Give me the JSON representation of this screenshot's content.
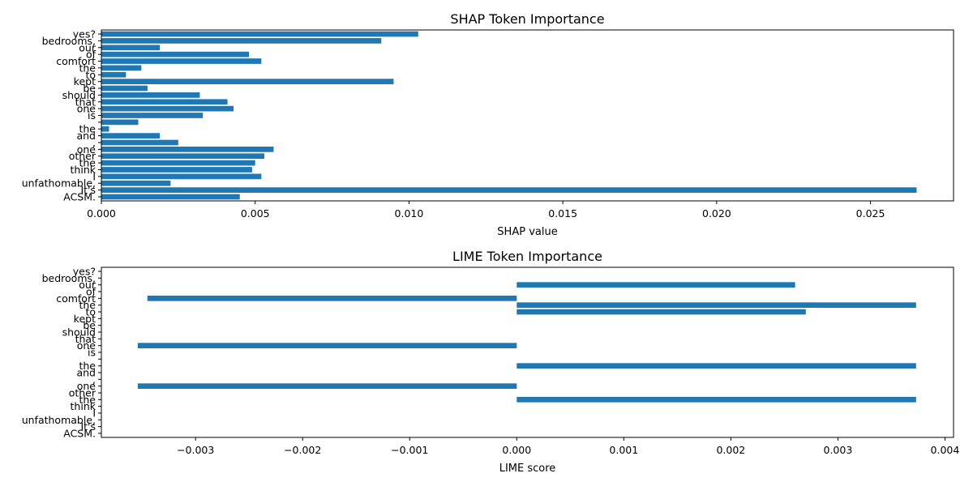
{
  "chart_data": [
    {
      "type": "bar",
      "orientation": "horizontal",
      "title": "SHAP Token Importance",
      "xlabel": "SHAP value",
      "ylabel": "",
      "xlim": [
        0,
        0.0277
      ],
      "xticks": [
        0.0,
        0.005,
        0.01,
        0.015,
        0.02,
        0.025
      ],
      "xtick_labels": [
        "0.000",
        "0.005",
        "0.010",
        "0.015",
        "0.020",
        "0.025"
      ],
      "grid": false,
      "categories": [
        "ACSM.",
        "It's",
        "unfathomable,",
        "I",
        "think",
        "the",
        "other",
        "one",
        ",",
        "and",
        "the",
        "",
        "is",
        "one",
        "that",
        "should",
        "be",
        "kept",
        "to",
        "the",
        "comfort",
        "of",
        "our",
        "bedrooms,",
        "yes?"
      ],
      "values": [
        0.0045,
        0.0265,
        0.00225,
        0.0052,
        0.0049,
        0.005,
        0.0053,
        0.0056,
        0.0025,
        0.0019,
        0.00025,
        0.0012,
        0.0033,
        0.0043,
        0.0041,
        0.0032,
        0.0015,
        0.0095,
        0.0008,
        0.0013,
        0.0052,
        0.0048,
        0.0019,
        0.0091,
        0.0103
      ]
    },
    {
      "type": "bar",
      "orientation": "horizontal",
      "title": "LIME Token Importance",
      "xlabel": "LIME score",
      "ylabel": "",
      "xlim": [
        -0.00388,
        0.00408
      ],
      "xticks": [
        -0.003,
        -0.002,
        -0.001,
        0.0,
        0.001,
        0.002,
        0.003,
        0.004
      ],
      "xtick_labels": [
        "−0.003",
        "−0.002",
        "−0.001",
        "0.000",
        "0.001",
        "0.002",
        "0.003",
        "0.004"
      ],
      "grid": false,
      "categories": [
        "ACSM.",
        "It's",
        "unfathomable,",
        "I",
        "think",
        "the",
        "other",
        "one",
        ",",
        "and",
        "the",
        "",
        "is",
        "one",
        "that",
        "should",
        "be",
        "kept",
        "to",
        "the",
        "comfort",
        "of",
        "our",
        "bedrooms,",
        "yes?"
      ],
      "values": [
        0,
        0,
        0,
        0,
        0,
        0.00373,
        0,
        -0.00354,
        0,
        0,
        0.00373,
        0,
        0,
        -0.00354,
        0,
        0,
        0,
        0,
        0.0027,
        0.00373,
        -0.00345,
        0,
        0.0026,
        0,
        0
      ]
    }
  ]
}
